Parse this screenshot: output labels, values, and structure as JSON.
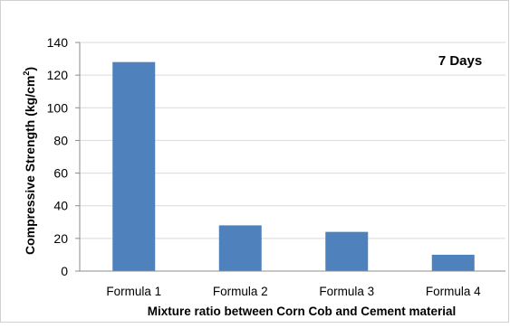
{
  "chart_data": {
    "type": "bar",
    "annotation": "7 Days",
    "xlabel": "Mixture ratio between Corn Cob and Cement material",
    "ylabel": "Compressive Strength (kg/cm²)",
    "ylabel_base": "Compressive Strength (kg/cm",
    "ylabel_sup": "2",
    "ylabel_end": ")",
    "categories": [
      "Formula 1",
      "Formula 2",
      "Formula 3",
      "Formula 4"
    ],
    "values": [
      128,
      28,
      24,
      10
    ],
    "ylim": [
      0,
      140
    ],
    "yticks": [
      0,
      20,
      40,
      60,
      80,
      100,
      120,
      140
    ],
    "grid": true,
    "colors": {
      "bar": "#4f81bd",
      "grid": "#d9d9d9",
      "axis": "#8c8c8c",
      "text": "#000000"
    }
  }
}
